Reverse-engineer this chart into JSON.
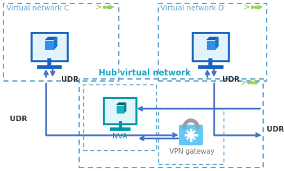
{
  "bg_color": "#ffffff",
  "blue_dark": "#2E75B6",
  "blue_mid": "#4472C4",
  "blue_light": "#00B0F0",
  "blue_dashed": "#5BA3D0",
  "green_dots": "#92D050",
  "gray": "#808080",
  "teal": "#17A8C8",
  "text_dark_blue": "#1F6BB0",
  "vnet_c_label": "Virtual network C",
  "vnet_d_label": "Virtual network D",
  "hub_label": "Hub virtual network",
  "nva_label": "NVA",
  "vpn_label": "VPN gateway",
  "udr_label": "UDR",
  "fig_width": 4.1,
  "fig_height": 2.47,
  "dpi": 100
}
